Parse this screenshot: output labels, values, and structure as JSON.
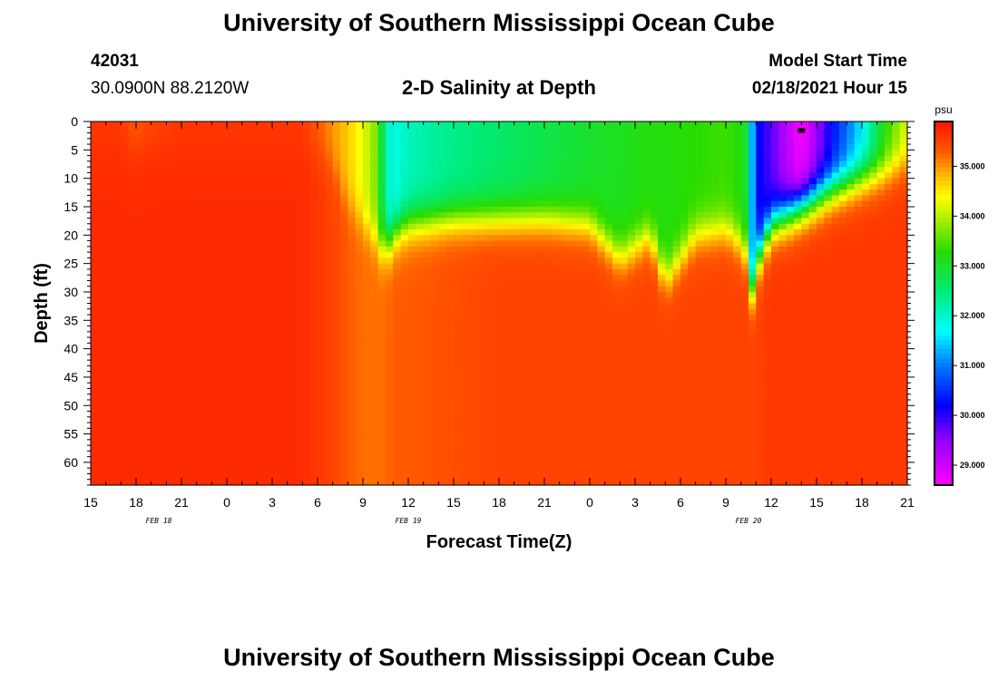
{
  "page": {
    "title_top": "University of Southern Mississippi Ocean Cube",
    "title_bottom": "University of Southern Mississippi Ocean Cube",
    "station_id": "42031",
    "station_location": "30.0900N 88.2120W",
    "model_start_label": "Model Start Time",
    "model_start_value": "02/18/2021 Hour 15"
  },
  "chart_data": {
    "type": "heatmap",
    "title": "2-D Salinity at Depth",
    "xlabel": "Forecast Time(Z)",
    "ylabel": "Depth (ft)",
    "x_start_hour": 15,
    "x_range_hours": [
      0,
      54
    ],
    "x_ticks": [
      "15",
      "18",
      "21",
      "0",
      "3",
      "6",
      "9",
      "12",
      "15",
      "18",
      "21",
      "0",
      "3",
      "6",
      "9",
      "12",
      "15",
      "18",
      "21"
    ],
    "date_labels": [
      {
        "text": "FEB 18",
        "hour": 4.5
      },
      {
        "text": "FEB 19",
        "hour": 21
      },
      {
        "text": "FEB 20",
        "hour": 43.5
      }
    ],
    "y_ticks": [
      "0",
      "5",
      "10",
      "15",
      "20",
      "25",
      "30",
      "35",
      "40",
      "45",
      "50",
      "55",
      "60"
    ],
    "ylim": [
      0,
      64
    ],
    "colorbar": {
      "unit": "psu",
      "range": [
        28.6,
        35.9
      ],
      "ticks": [
        "35.000",
        "34.000",
        "33.000",
        "32.000",
        "31.000",
        "30.000",
        "29.000"
      ],
      "tick_values": [
        35,
        34,
        33,
        32,
        31,
        30,
        29
      ]
    },
    "marker": {
      "hour": 47,
      "depth_ft": 1.5
    },
    "columns": [
      {
        "hour": 0,
        "surface": 35.6,
        "mld": 5,
        "bottom": 35.7
      },
      {
        "hour": 2,
        "surface": 35.6,
        "mld": 5,
        "bottom": 35.7
      },
      {
        "hour": 3,
        "surface": 35.3,
        "mld": 5,
        "bottom": 35.7
      },
      {
        "hour": 4,
        "surface": 35.5,
        "mld": 5,
        "bottom": 35.7
      },
      {
        "hour": 6,
        "surface": 35.6,
        "mld": 5,
        "bottom": 35.7
      },
      {
        "hour": 14,
        "surface": 35.6,
        "mld": 5,
        "bottom": 35.7
      },
      {
        "hour": 15,
        "surface": 35.3,
        "mld": 5,
        "bottom": 35.6
      },
      {
        "hour": 16,
        "surface": 35.0,
        "mld": 8,
        "bottom": 35.5
      },
      {
        "hour": 17,
        "surface": 34.7,
        "mld": 14,
        "bottom": 35.3
      },
      {
        "hour": 18,
        "surface": 34.3,
        "mld": 18,
        "bottom": 35.2
      },
      {
        "hour": 19,
        "surface": 33.6,
        "mld": 21,
        "bottom": 35.2
      },
      {
        "hour": 19.5,
        "surface": 32.2,
        "mld": 23,
        "bottom": 35.2
      },
      {
        "hour": 20,
        "surface": 31.8,
        "mld": 20,
        "bottom": 35.3
      },
      {
        "hour": 21,
        "surface": 32.1,
        "mld": 18,
        "bottom": 35.3
      },
      {
        "hour": 24,
        "surface": 32.4,
        "mld": 17,
        "bottom": 35.4
      },
      {
        "hour": 27,
        "surface": 32.6,
        "mld": 17,
        "bottom": 35.5
      },
      {
        "hour": 30,
        "surface": 32.8,
        "mld": 17,
        "bottom": 35.5
      },
      {
        "hour": 33,
        "surface": 33.0,
        "mld": 18,
        "bottom": 35.5
      },
      {
        "hour": 35,
        "surface": 33.1,
        "mld": 24,
        "bottom": 35.5
      },
      {
        "hour": 37,
        "surface": 33.2,
        "mld": 20,
        "bottom": 35.5
      },
      {
        "hour": 38,
        "surface": 33.2,
        "mld": 28,
        "bottom": 35.5
      },
      {
        "hour": 40,
        "surface": 33.3,
        "mld": 20,
        "bottom": 35.5
      },
      {
        "hour": 42,
        "surface": 33.4,
        "mld": 19,
        "bottom": 35.5
      },
      {
        "hour": 43.2,
        "surface": 33.2,
        "mld": 22,
        "bottom": 35.5
      },
      {
        "hour": 43.7,
        "surface": 31.5,
        "mld": 30,
        "bottom": 35.5
      },
      {
        "hour": 44,
        "surface": 30.3,
        "mld": 25,
        "bottom": 35.5
      },
      {
        "hour": 45,
        "surface": 29.8,
        "mld": 18,
        "bottom": 35.6
      },
      {
        "hour": 47,
        "surface": 28.6,
        "mld": 15,
        "bottom": 35.6
      },
      {
        "hour": 49,
        "surface": 30.2,
        "mld": 12,
        "bottom": 35.6
      },
      {
        "hour": 51,
        "surface": 31.6,
        "mld": 10,
        "bottom": 35.6
      },
      {
        "hour": 52.5,
        "surface": 33.2,
        "mld": 9,
        "bottom": 35.6
      },
      {
        "hour": 54,
        "surface": 34.2,
        "mld": 7,
        "bottom": 35.6
      }
    ]
  }
}
